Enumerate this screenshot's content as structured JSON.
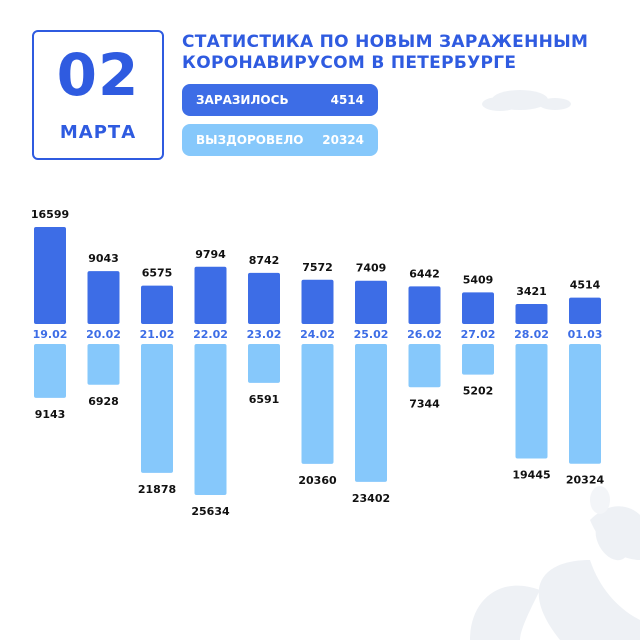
{
  "header": {
    "day": "02",
    "month": "МАРТА",
    "title_line1": "СТАТИСТИКА ПО НОВЫМ ЗАРАЖЕННЫМ",
    "title_line2": "КОРОНАВИРУСОМ В ПЕТЕРБУРГЕ"
  },
  "summary": {
    "infected_label": "ЗАРАЗИЛОСЬ",
    "infected_value": "4514",
    "recovered_label": "ВЫЗДОРОВЕЛО",
    "recovered_value": "20324"
  },
  "colors": {
    "infected": "#3d6de6",
    "recovered": "#86c8fb",
    "accent": "#2f5be0",
    "decor": "#eef1f5"
  },
  "chart_data": {
    "type": "bar",
    "categories": [
      "19.02",
      "20.02",
      "21.02",
      "22.02",
      "23.02",
      "24.02",
      "25.02",
      "26.02",
      "27.02",
      "28.02",
      "01.03"
    ],
    "series": [
      {
        "values": [
          16599,
          9043,
          6575,
          9794,
          8742,
          7572,
          7409,
          6442,
          5409,
          3421,
          4514
        ]
      },
      {
        "values": [
          9143,
          6928,
          21878,
          25634,
          6591,
          20360,
          23402,
          7344,
          5202,
          19445,
          20324
        ]
      }
    ]
  }
}
